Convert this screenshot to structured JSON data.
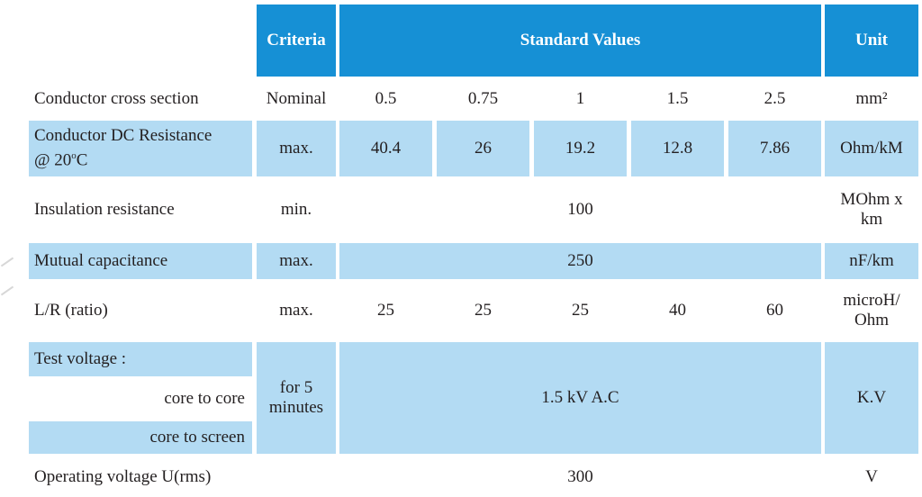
{
  "header": {
    "criteria": "Criteria",
    "standard_values": "Standard Values",
    "unit": "Unit"
  },
  "rows": {
    "cross_section": {
      "label": "Conductor cross section",
      "criteria": "Nominal",
      "values": [
        "0.5",
        "0.75",
        "1",
        "1.5",
        "2.5"
      ],
      "unit": "mm²"
    },
    "dc_resistance": {
      "label_line1": "Conductor DC Resistance",
      "label_line2_prefix": "@ 20",
      "label_line2_sup": "o",
      "label_line2_suffix": "C",
      "criteria": "max.",
      "values": [
        "40.4",
        "26",
        "19.2",
        "12.8",
        "7.86"
      ],
      "unit": "Ohm/kM"
    },
    "insulation": {
      "label": "Insulation resistance",
      "criteria": "min.",
      "value": "100",
      "unit_line1": "MOhm x",
      "unit_line2": "km"
    },
    "capacitance": {
      "label": "Mutual capacitance",
      "criteria": "max.",
      "value": "250",
      "unit": "nF/km"
    },
    "lr_ratio": {
      "label": "L/R (ratio)",
      "criteria": "max.",
      "values": [
        "25",
        "25",
        "25",
        "40",
        "60"
      ],
      "unit_line1": "microH/",
      "unit_line2": "Ohm"
    },
    "test_voltage": {
      "label": "Test voltage :",
      "sub1": "core to core",
      "sub2": "core to screen",
      "criteria_line1": "for 5",
      "criteria_line2": "minutes",
      "value": "1.5 kV A.C",
      "unit": "K.V"
    },
    "operating_voltage": {
      "label": "Operating voltage  U(rms)",
      "value": "300",
      "unit": "V"
    }
  },
  "colors": {
    "header_blue": "#1690d5",
    "light_blue": "#b3dbf3",
    "text": "#231f20"
  }
}
